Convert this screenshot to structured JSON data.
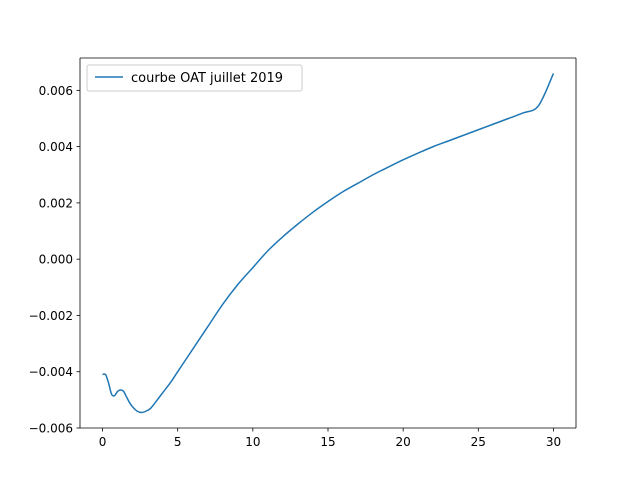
{
  "chart_data": {
    "type": "line",
    "title": "",
    "xlabel": "",
    "ylabel": "",
    "xlim": [
      -1.5,
      31.5
    ],
    "ylim": [
      -0.006,
      0.00715
    ],
    "x_ticks": [
      0,
      5,
      10,
      15,
      20,
      25,
      30
    ],
    "x_tick_labels": [
      "0",
      "5",
      "10",
      "15",
      "20",
      "25",
      "30"
    ],
    "y_ticks": [
      -0.006,
      -0.004,
      -0.002,
      0.0,
      0.002,
      0.004,
      0.006
    ],
    "y_tick_labels": [
      "−0.006",
      "−0.004",
      "−0.002",
      "0.000",
      "0.002",
      "0.004",
      "0.006"
    ],
    "grid": false,
    "legend": {
      "placement": "upper-left"
    },
    "series": [
      {
        "name": "courbe OAT juillet 2019",
        "color": "#1f77b4",
        "x": [
          0,
          0.2,
          0.4,
          0.6,
          0.8,
          1.0,
          1.2,
          1.4,
          1.6,
          1.8,
          2.0,
          2.3,
          2.6,
          2.9,
          3.2,
          3.5,
          4.0,
          4.5,
          5,
          6,
          7,
          8,
          9,
          10,
          11,
          12,
          13,
          14,
          15,
          16,
          17,
          18,
          19,
          20,
          21,
          22,
          23,
          24,
          25,
          26,
          27,
          28,
          29,
          30
        ],
        "y": [
          -0.0041,
          -0.0041,
          -0.0044,
          -0.0048,
          -0.00485,
          -0.0047,
          -0.00465,
          -0.0047,
          -0.0049,
          -0.0051,
          -0.00525,
          -0.0054,
          -0.00545,
          -0.0054,
          -0.0053,
          -0.0051,
          -0.00475,
          -0.0044,
          -0.004,
          -0.0032,
          -0.0024,
          -0.0016,
          -0.0009,
          -0.0003,
          0.0003,
          0.0008,
          0.00125,
          0.00167,
          0.00205,
          0.0024,
          0.0027,
          0.003,
          0.00327,
          0.00353,
          0.00377,
          0.004,
          0.0042,
          0.0044,
          0.0046,
          0.0048,
          0.005,
          0.0052,
          0.00545,
          0.0066
        ]
      }
    ]
  }
}
